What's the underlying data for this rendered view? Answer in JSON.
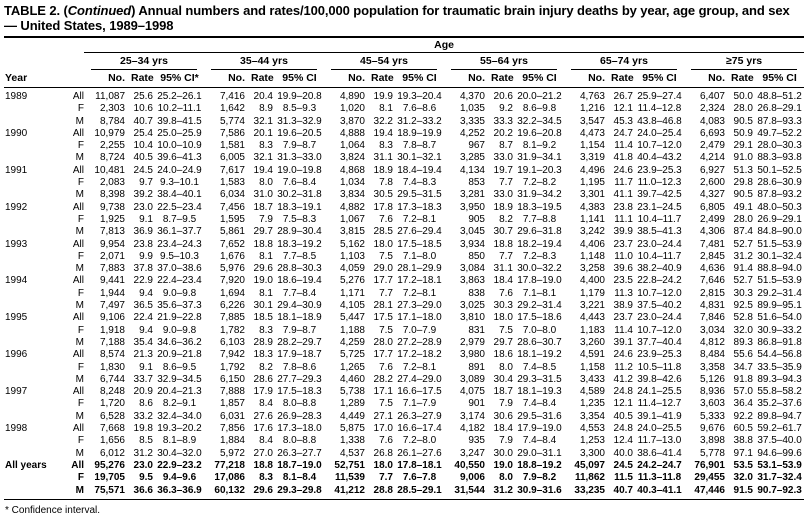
{
  "title": {
    "prefix": "TABLE 2. (",
    "continued": "Continued",
    "suffix": ") Annual numbers and rates/100,000 population for traumatic brain injury deaths by year, age group, and sex — United States, 1989–1998"
  },
  "footnote": "* Confidence interval.",
  "table": {
    "age_header": "Age",
    "year_header": "Year",
    "groups": [
      {
        "label": "25–34 yrs",
        "subcols": [
          "No.",
          "Rate",
          "95% CI*"
        ]
      },
      {
        "label": "35–44 yrs",
        "subcols": [
          "No.",
          "Rate",
          "95% CI"
        ]
      },
      {
        "label": "45–54 yrs",
        "subcols": [
          "No.",
          "Rate",
          "95% CI"
        ]
      },
      {
        "label": "55–64 yrs",
        "subcols": [
          "No.",
          "Rate",
          "95% CI"
        ]
      },
      {
        "label": "65–74 yrs",
        "subcols": [
          "No.",
          "Rate",
          "95% CI"
        ]
      },
      {
        "label": "≥75 yrs",
        "subcols": [
          "No.",
          "Rate",
          "95% CI"
        ]
      }
    ],
    "rows": [
      {
        "year": "1989",
        "sex": "All",
        "bold": false,
        "cells": [
          "11,087",
          "25.6",
          "25.2–26.1",
          "7,416",
          "20.4",
          "19.9–20.8",
          "4,890",
          "19.9",
          "19.3–20.4",
          "4,370",
          "20.6",
          "20.0–21.2",
          "4,763",
          "26.7",
          "25.9–27.4",
          "6,407",
          "50.0",
          "48.8–51.2"
        ]
      },
      {
        "year": "",
        "sex": "F",
        "bold": false,
        "cells": [
          "2,303",
          "10.6",
          "10.2–11.1",
          "1,642",
          "8.9",
          "8.5–9.3",
          "1,020",
          "8.1",
          "7.6–8.6",
          "1,035",
          "9.2",
          "8.6–9.8",
          "1,216",
          "12.1",
          "11.4–12.8",
          "2,324",
          "28.0",
          "26.8–29.1"
        ]
      },
      {
        "year": "",
        "sex": "M",
        "bold": false,
        "cells": [
          "8,784",
          "40.7",
          "39.8–41.5",
          "5,774",
          "32.1",
          "31.3–32.9",
          "3,870",
          "32.2",
          "31.2–33.2",
          "3,335",
          "33.3",
          "32.2–34.5",
          "3,547",
          "45.3",
          "43.8–46.8",
          "4,083",
          "90.5",
          "87.8–93.3"
        ]
      },
      {
        "year": "1990",
        "sex": "All",
        "bold": false,
        "cells": [
          "10,979",
          "25.4",
          "25.0–25.9",
          "7,586",
          "20.1",
          "19.6–20.5",
          "4,888",
          "19.4",
          "18.9–19.9",
          "4,252",
          "20.2",
          "19.6–20.8",
          "4,473",
          "24.7",
          "24.0–25.4",
          "6,693",
          "50.9",
          "49.7–52.2"
        ]
      },
      {
        "year": "",
        "sex": "F",
        "bold": false,
        "cells": [
          "2,255",
          "10.4",
          "10.0–10.9",
          "1,581",
          "8.3",
          "7.9–8.7",
          "1,064",
          "8.3",
          "7.8–8.7",
          "967",
          "8.7",
          "8.1–9.2",
          "1,154",
          "11.4",
          "10.7–12.0",
          "2,479",
          "29.1",
          "28.0–30.3"
        ]
      },
      {
        "year": "",
        "sex": "M",
        "bold": false,
        "cells": [
          "8,724",
          "40.5",
          "39.6–41.3",
          "6,005",
          "32.1",
          "31.3–33.0",
          "3,824",
          "31.1",
          "30.1–32.1",
          "3,285",
          "33.0",
          "31.9–34.1",
          "3,319",
          "41.8",
          "40.4–43.2",
          "4,214",
          "91.0",
          "88.3–93.8"
        ]
      },
      {
        "year": "1991",
        "sex": "All",
        "bold": false,
        "cells": [
          "10,481",
          "24.5",
          "24.0–24.9",
          "7,617",
          "19.4",
          "19.0–19.8",
          "4,868",
          "18.9",
          "18.4–19.4",
          "4,134",
          "19.7",
          "19.1–20.3",
          "4,496",
          "24.6",
          "23.9–25.3",
          "6,927",
          "51.3",
          "50.1–52.5"
        ]
      },
      {
        "year": "",
        "sex": "F",
        "bold": false,
        "cells": [
          "2,083",
          "9.7",
          "9.3–10.1",
          "1,583",
          "8.0",
          "7.6–8.4",
          "1,034",
          "7.8",
          "7.4–8.3",
          "853",
          "7.7",
          "7.2–8.2",
          "1,195",
          "11.7",
          "11.0–12.3",
          "2,600",
          "29.8",
          "28.6–30.9"
        ]
      },
      {
        "year": "",
        "sex": "M",
        "bold": false,
        "cells": [
          "8,398",
          "39.2",
          "38.4–40.1",
          "6,034",
          "31.0",
          "30.2–31.8",
          "3,834",
          "30.5",
          "29.5–31.5",
          "3,281",
          "33.0",
          "31.9–34.2",
          "3,301",
          "41.1",
          "39.7–42.5",
          "4,327",
          "90.5",
          "87.8–93.2"
        ]
      },
      {
        "year": "1992",
        "sex": "All",
        "bold": false,
        "cells": [
          "9,738",
          "23.0",
          "22.5–23.4",
          "7,456",
          "18.7",
          "18.3–19.1",
          "4,882",
          "17.8",
          "17.3–18.3",
          "3,950",
          "18.9",
          "18.3–19.5",
          "4,383",
          "23.8",
          "23.1–24.5",
          "6,805",
          "49.1",
          "48.0–50.3"
        ]
      },
      {
        "year": "",
        "sex": "F",
        "bold": false,
        "cells": [
          "1,925",
          "9.1",
          "8.7–9.5",
          "1,595",
          "7.9",
          "7.5–8.3",
          "1,067",
          "7.6",
          "7.2–8.1",
          "905",
          "8.2",
          "7.7–8.8",
          "1,141",
          "11.1",
          "10.4–11.7",
          "2,499",
          "28.0",
          "26.9–29.1"
        ]
      },
      {
        "year": "",
        "sex": "M",
        "bold": false,
        "cells": [
          "7,813",
          "36.9",
          "36.1–37.7",
          "5,861",
          "29.7",
          "28.9–30.4",
          "3,815",
          "28.5",
          "27.6–29.4",
          "3,045",
          "30.7",
          "29.6–31.8",
          "3,242",
          "39.9",
          "38.5–41.3",
          "4,306",
          "87.4",
          "84.8–90.0"
        ]
      },
      {
        "year": "1993",
        "sex": "All",
        "bold": false,
        "cells": [
          "9,954",
          "23.8",
          "23.4–24.3",
          "7,652",
          "18.8",
          "18.3–19.2",
          "5,162",
          "18.0",
          "17.5–18.5",
          "3,934",
          "18.8",
          "18.2–19.4",
          "4,406",
          "23.7",
          "23.0–24.4",
          "7,481",
          "52.7",
          "51.5–53.9"
        ]
      },
      {
        "year": "",
        "sex": "F",
        "bold": false,
        "cells": [
          "2,071",
          "9.9",
          "9.5–10.3",
          "1,676",
          "8.1",
          "7.7–8.5",
          "1,103",
          "7.5",
          "7.1–8.0",
          "850",
          "7.7",
          "7.2–8.3",
          "1,148",
          "11.0",
          "10.4–11.7",
          "2,845",
          "31.2",
          "30.1–32.4"
        ]
      },
      {
        "year": "",
        "sex": "M",
        "bold": false,
        "cells": [
          "7,883",
          "37.8",
          "37.0–38.6",
          "5,976",
          "29.6",
          "28.8–30.3",
          "4,059",
          "29.0",
          "28.1–29.9",
          "3,084",
          "31.1",
          "30.0–32.2",
          "3,258",
          "39.6",
          "38.2–40.9",
          "4,636",
          "91.4",
          "88.8–94.0"
        ]
      },
      {
        "year": "1994",
        "sex": "All",
        "bold": false,
        "cells": [
          "9,441",
          "22.9",
          "22.4–23.4",
          "7,920",
          "19.0",
          "18.6–19.4",
          "5,276",
          "17.7",
          "17.2–18.1",
          "3,863",
          "18.4",
          "17.8–19.0",
          "4,400",
          "23.5",
          "22.8–24.2",
          "7,646",
          "52.7",
          "51.5–53.9"
        ]
      },
      {
        "year": "",
        "sex": "F",
        "bold": false,
        "cells": [
          "1,944",
          "9.4",
          "9.0–9.8",
          "1,694",
          "8.1",
          "7.7–8.4",
          "1,171",
          "7.7",
          "7.2–8.1",
          "838",
          "7.6",
          "7.1–8.1",
          "1,179",
          "11.3",
          "10.7–12.0",
          "2,815",
          "30.3",
          "29.2–31.4"
        ]
      },
      {
        "year": "",
        "sex": "M",
        "bold": false,
        "cells": [
          "7,497",
          "36.5",
          "35.6–37.3",
          "6,226",
          "30.1",
          "29.4–30.9",
          "4,105",
          "28.1",
          "27.3–29.0",
          "3,025",
          "30.3",
          "29.2–31.4",
          "3,221",
          "38.9",
          "37.5–40.2",
          "4,831",
          "92.5",
          "89.9–95.1"
        ]
      },
      {
        "year": "1995",
        "sex": "All",
        "bold": false,
        "cells": [
          "9,106",
          "22.4",
          "21.9–22.8",
          "7,885",
          "18.5",
          "18.1–18.9",
          "5,447",
          "17.5",
          "17.1–18.0",
          "3,810",
          "18.0",
          "17.5–18.6",
          "4,443",
          "23.7",
          "23.0–24.4",
          "7,846",
          "52.8",
          "51.6–54.0"
        ]
      },
      {
        "year": "",
        "sex": "F",
        "bold": false,
        "cells": [
          "1,918",
          "9.4",
          "9.0–9.8",
          "1,782",
          "8.3",
          "7.9–8.7",
          "1,188",
          "7.5",
          "7.0–7.9",
          "831",
          "7.5",
          "7.0–8.0",
          "1,183",
          "11.4",
          "10.7–12.0",
          "3,034",
          "32.0",
          "30.9–33.2"
        ]
      },
      {
        "year": "",
        "sex": "M",
        "bold": false,
        "cells": [
          "7,188",
          "35.4",
          "34.6–36.2",
          "6,103",
          "28.9",
          "28.2–29.7",
          "4,259",
          "28.0",
          "27.2–28.9",
          "2,979",
          "29.7",
          "28.6–30.7",
          "3,260",
          "39.1",
          "37.7–40.4",
          "4,812",
          "89.3",
          "86.8–91.8"
        ]
      },
      {
        "year": "1996",
        "sex": "All",
        "bold": false,
        "cells": [
          "8,574",
          "21.3",
          "20.9–21.8",
          "7,942",
          "18.3",
          "17.9–18.7",
          "5,725",
          "17.7",
          "17.2–18.2",
          "3,980",
          "18.6",
          "18.1–19.2",
          "4,591",
          "24.6",
          "23.9–25.3",
          "8,484",
          "55.6",
          "54.4–56.8"
        ]
      },
      {
        "year": "",
        "sex": "F",
        "bold": false,
        "cells": [
          "1,830",
          "9.1",
          "8.6–9.5",
          "1,792",
          "8.2",
          "7.8–8.6",
          "1,265",
          "7.6",
          "7.2–8.1",
          "891",
          "8.0",
          "7.4–8.5",
          "1,158",
          "11.2",
          "10.5–11.8",
          "3,358",
          "34.7",
          "33.5–35.9"
        ]
      },
      {
        "year": "",
        "sex": "M",
        "bold": false,
        "cells": [
          "6,744",
          "33.7",
          "32.9–34.5",
          "6,150",
          "28.6",
          "27.7–29.3",
          "4,460",
          "28.2",
          "27.4–29.0",
          "3,089",
          "30.4",
          "29.3–31.5",
          "3,433",
          "41.2",
          "39.8–42.6",
          "5,126",
          "91.8",
          "89.3–94.3"
        ]
      },
      {
        "year": "1997",
        "sex": "All",
        "bold": false,
        "cells": [
          "8,248",
          "20.9",
          "20.4–21.3",
          "7,888",
          "17.9",
          "17.5–18.3",
          "5,738",
          "17.1",
          "16.6–17.5",
          "4,075",
          "18.7",
          "18.1–19.3",
          "4,589",
          "24.8",
          "24.1–25.5",
          "8,936",
          "57.0",
          "55.8–58.2"
        ]
      },
      {
        "year": "",
        "sex": "F",
        "bold": false,
        "cells": [
          "1,720",
          "8.6",
          "8.2–9.1",
          "1,857",
          "8.4",
          "8.0–8.8",
          "1,289",
          "7.5",
          "7.1–7.9",
          "901",
          "7.9",
          "7.4–8.4",
          "1,235",
          "12.1",
          "11.4–12.7",
          "3,603",
          "36.4",
          "35.2–37.6"
        ]
      },
      {
        "year": "",
        "sex": "M",
        "bold": false,
        "cells": [
          "6,528",
          "33.2",
          "32.4–34.0",
          "6,031",
          "27.6",
          "26.9–28.3",
          "4,449",
          "27.1",
          "26.3–27.9",
          "3,174",
          "30.6",
          "29.5–31.6",
          "3,354",
          "40.5",
          "39.1–41.9",
          "5,333",
          "92.2",
          "89.8–94.7"
        ]
      },
      {
        "year": "1998",
        "sex": "All",
        "bold": false,
        "cells": [
          "7,668",
          "19.8",
          "19.3–20.2",
          "7,856",
          "17.6",
          "17.3–18.0",
          "5,875",
          "17.0",
          "16.6–17.4",
          "4,182",
          "18.4",
          "17.9–19.0",
          "4,553",
          "24.8",
          "24.0–25.5",
          "9,676",
          "60.5",
          "59.2–61.7"
        ]
      },
      {
        "year": "",
        "sex": "F",
        "bold": false,
        "cells": [
          "1,656",
          "8.5",
          "8.1–8.9",
          "1,884",
          "8.4",
          "8.0–8.8",
          "1,338",
          "7.6",
          "7.2–8.0",
          "935",
          "7.9",
          "7.4–8.4",
          "1,253",
          "12.4",
          "11.7–13.0",
          "3,898",
          "38.8",
          "37.5–40.0"
        ]
      },
      {
        "year": "",
        "sex": "M",
        "bold": false,
        "cells": [
          "6,012",
          "31.2",
          "30.4–32.0",
          "5,972",
          "27.0",
          "26.3–27.7",
          "4,537",
          "26.8",
          "26.1–27.6",
          "3,247",
          "30.0",
          "29.0–31.1",
          "3,300",
          "40.0",
          "38.6–41.4",
          "5,778",
          "97.1",
          "94.6–99.6"
        ]
      },
      {
        "year": "All years",
        "sex": "All",
        "bold": true,
        "cells": [
          "95,276",
          "23.0",
          "22.9–23.2",
          "77,218",
          "18.8",
          "18.7–19.0",
          "52,751",
          "18.0",
          "17.8–18.1",
          "40,550",
          "19.0",
          "18.8–19.2",
          "45,097",
          "24.5",
          "24.2–24.7",
          "76,901",
          "53.5",
          "53.1–53.9"
        ]
      },
      {
        "year": "",
        "sex": "F",
        "bold": true,
        "cells": [
          "19,705",
          "9.5",
          "9.4–9.6",
          "17,086",
          "8.3",
          "8.1–8.4",
          "11,539",
          "7.7",
          "7.6–7.8",
          "9,006",
          "8.0",
          "7.9–8.2",
          "11,862",
          "11.5",
          "11.3–11.8",
          "29,455",
          "32.0",
          "31.7–32.4"
        ]
      },
      {
        "year": "",
        "sex": "M",
        "bold": true,
        "cells": [
          "75,571",
          "36.6",
          "36.3–36.9",
          "60,132",
          "29.6",
          "29.3–29.8",
          "41,212",
          "28.8",
          "28.5–29.1",
          "31,544",
          "31.2",
          "30.9–31.6",
          "33,235",
          "40.7",
          "40.3–41.1",
          "47,446",
          "91.5",
          "90.7–92.3"
        ]
      }
    ]
  }
}
